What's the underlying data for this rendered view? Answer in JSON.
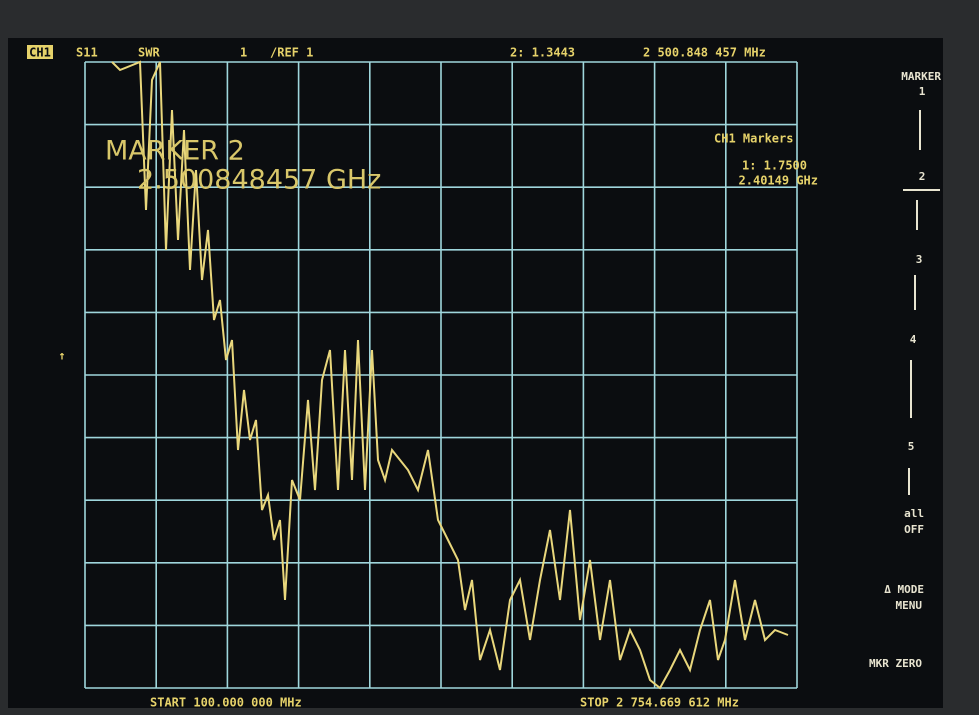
{
  "header": {
    "channel": "CH1",
    "parameter": "S11",
    "format": "SWR",
    "scale": "1",
    "reference": "/REF 1",
    "marker_readout": "2: 1.3443",
    "marker_frequency": "2 500.848 457 MHz"
  },
  "marker_display": {
    "title": "MARKER 2",
    "frequency": "2.500848457 GHz"
  },
  "marker_list": {
    "title": "CH1 Markers",
    "marker_1_value": "1: 1.7500",
    "marker_1_frequency": "2.40149 GHz"
  },
  "softkeys": [
    "MARKER",
    "1",
    "2",
    "3",
    "4",
    "5",
    "all",
    "OFF",
    "Δ MODE",
    "MENU",
    "MKR ZERO"
  ],
  "reference_arrow": "↑",
  "footer": {
    "start": "START 100.000 000 MHz",
    "stop": "STOP 2 754.669 612 MHz"
  }
}
